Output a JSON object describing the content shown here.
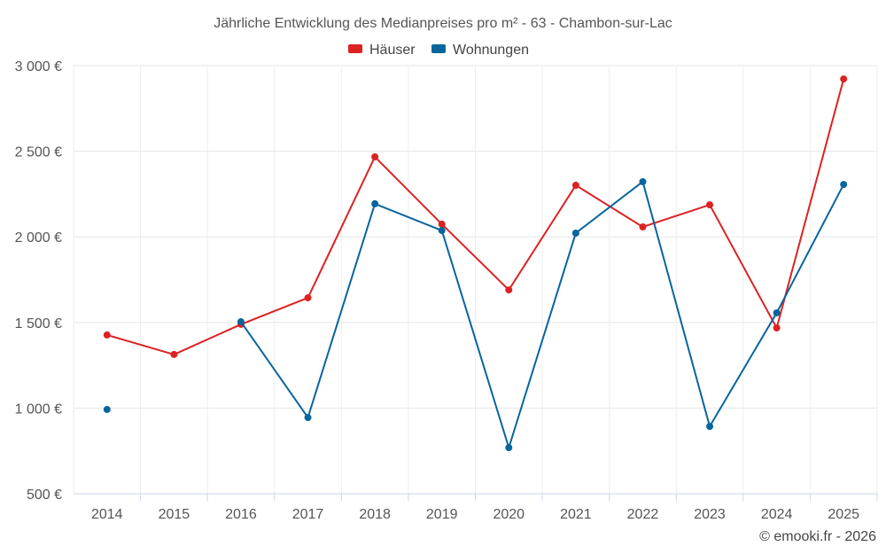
{
  "chart_data": {
    "type": "line",
    "title": "Jährliche Entwicklung des Medianpreises pro m² - 63 - Chambon-sur-Lac",
    "xlabel": "",
    "ylabel": "",
    "categories": [
      "2014",
      "2015",
      "2016",
      "2017",
      "2018",
      "2019",
      "2020",
      "2021",
      "2022",
      "2023",
      "2024",
      "2025"
    ],
    "ylim": [
      500,
      3000
    ],
    "yticks": [
      500,
      1000,
      1500,
      2000,
      2500,
      3000
    ],
    "ytick_labels": [
      "500 €",
      "1 000 €",
      "1 500 €",
      "2 000 €",
      "2 500 €",
      "3 000 €"
    ],
    "grid": true,
    "legend_position": "top-center",
    "series": [
      {
        "name": "Häuser",
        "color": "#dd2222",
        "values": [
          1427,
          1313,
          1489,
          1644,
          2467,
          2074,
          1690,
          2301,
          2058,
          2187,
          1468,
          2922
        ]
      },
      {
        "name": "Wohnungen",
        "color": "#06659e",
        "values": [
          992,
          null,
          1504,
          945,
          2193,
          2037,
          769,
          2022,
          2322,
          893,
          1556,
          2306
        ]
      }
    ],
    "credit": "© emooki.fr - 2026"
  }
}
